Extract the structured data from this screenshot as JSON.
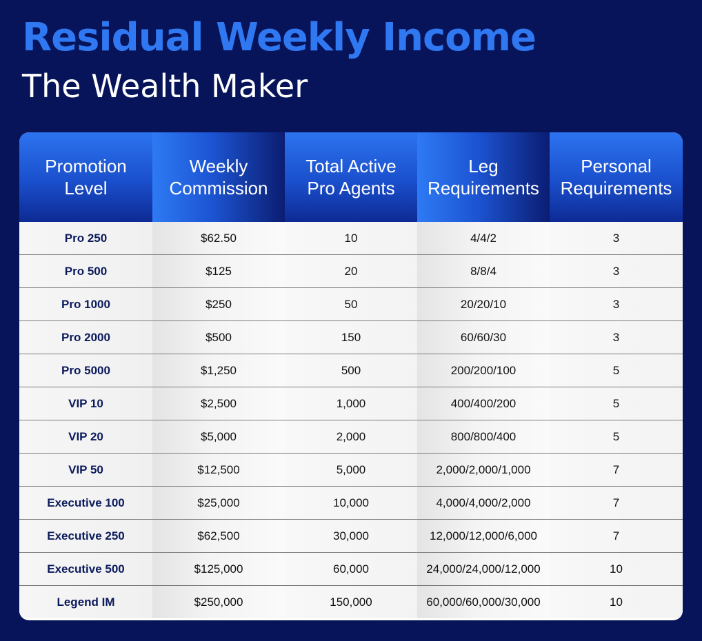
{
  "heading": {
    "title": "Residual Weekly Income",
    "subtitle": "The Wealth Maker"
  },
  "table": {
    "headers": [
      [
        "Promotion",
        "Level"
      ],
      [
        "Weekly",
        "Commission"
      ],
      [
        "Total Active",
        "Pro Agents"
      ],
      [
        "Leg",
        "Requirements"
      ],
      [
        "Personal",
        "Requirements"
      ]
    ],
    "rows": [
      [
        "Pro 250",
        "$62.50",
        "10",
        "4/4/2",
        "3"
      ],
      [
        "Pro 500",
        "$125",
        "20",
        "8/8/4",
        "3"
      ],
      [
        "Pro 1000",
        "$250",
        "50",
        "20/20/10",
        "3"
      ],
      [
        "Pro 2000",
        "$500",
        "150",
        "60/60/30",
        "3"
      ],
      [
        "Pro 5000",
        "$1,250",
        "500",
        "200/200/100",
        "5"
      ],
      [
        "VIP 10",
        "$2,500",
        "1,000",
        "400/400/200",
        "5"
      ],
      [
        "VIP 20",
        "$5,000",
        "2,000",
        "800/800/400",
        "5"
      ],
      [
        "VIP 50",
        "$12,500",
        "5,000",
        "2,000/2,000/1,000",
        "7"
      ],
      [
        "Executive 100",
        "$25,000",
        "10,000",
        "4,000/4,000/2,000",
        "7"
      ],
      [
        "Executive 250",
        "$62,500",
        "30,000",
        "12,000/12,000/6,000",
        "7"
      ],
      [
        "Executive 500",
        "$125,000",
        "60,000",
        "24,000/24,000/12,000",
        "10"
      ],
      [
        "Legend IM",
        "$250,000",
        "150,000",
        "60,000/60,000/30,000",
        "10"
      ]
    ]
  },
  "colors": {
    "background": "#071459",
    "title": "#2f78f2",
    "subtitle": "#ffffff",
    "header_blue": "#1a4fcc",
    "level_text": "#0b1a5c"
  }
}
